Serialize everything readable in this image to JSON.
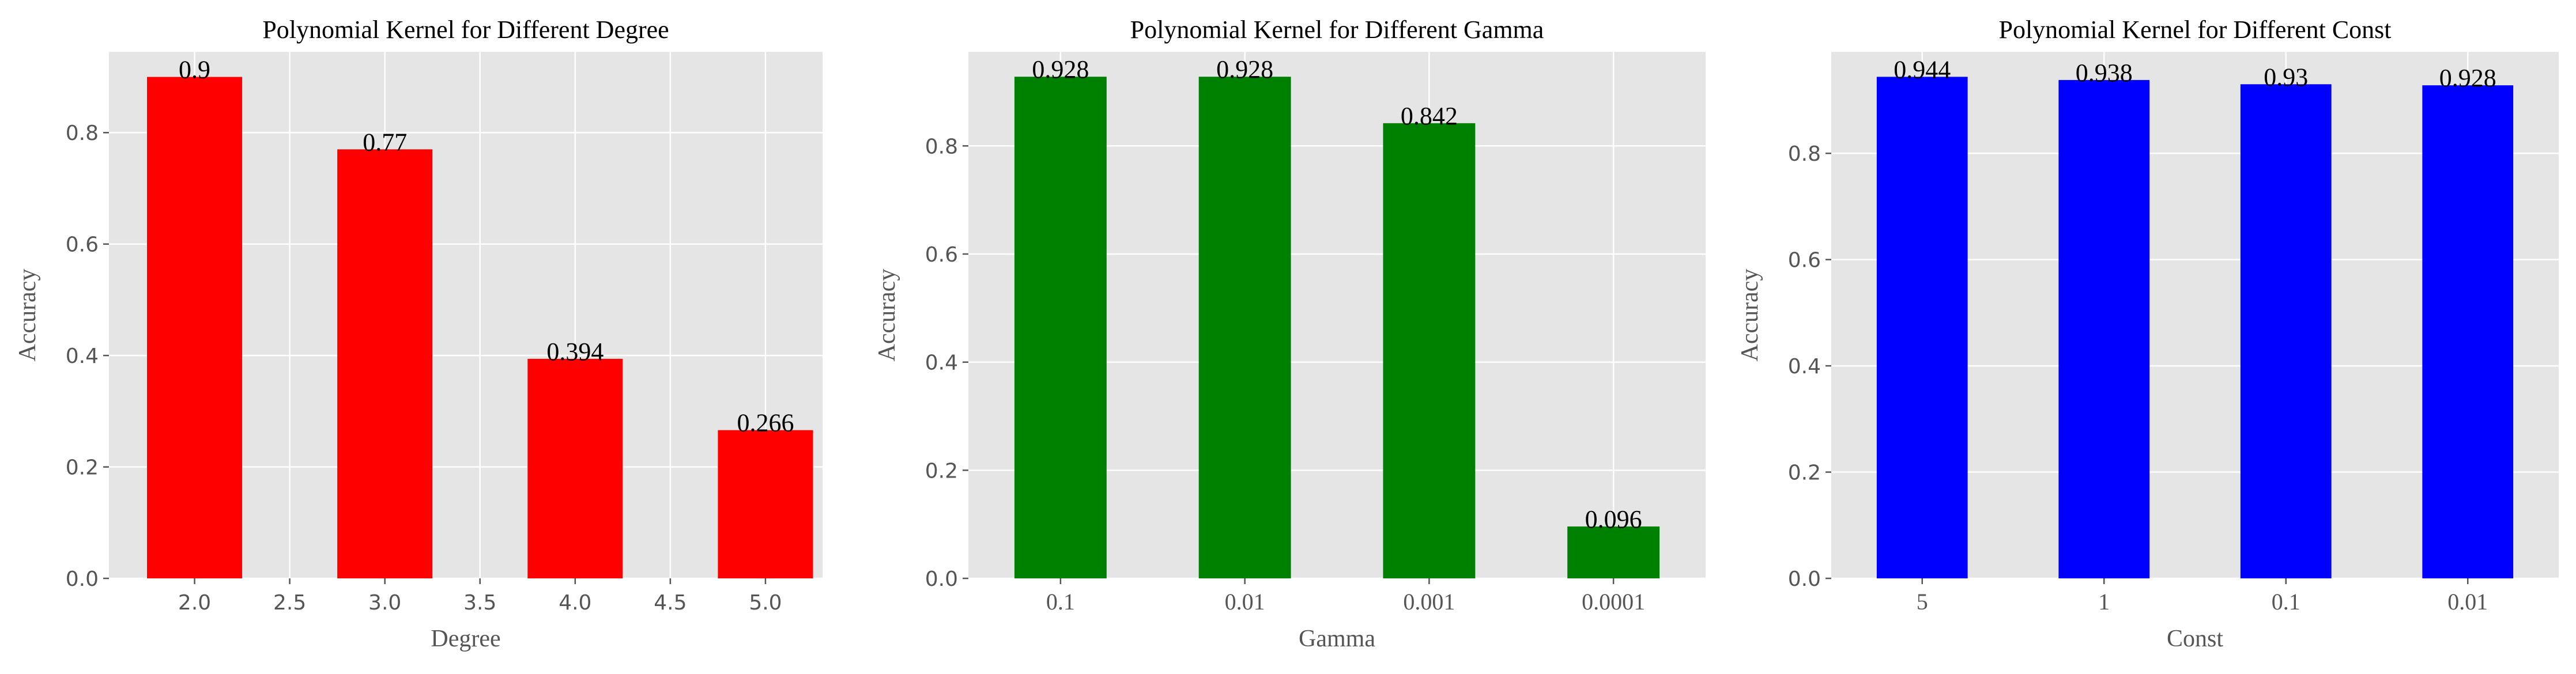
{
  "chart_data": [
    {
      "type": "bar",
      "title": "Polynomial Kernel for Different Degree",
      "xlabel": "Degree",
      "ylabel": "Accuracy",
      "x": [
        2,
        3,
        4,
        5
      ],
      "values": [
        0.9,
        0.77,
        0.394,
        0.266
      ],
      "data_labels": [
        "0.9",
        "0.77",
        "0.394",
        "0.266"
      ],
      "xlim": [
        1.55,
        5.3
      ],
      "ylim": [
        0,
        0.945
      ],
      "xticks": [
        "2.0",
        "2.5",
        "3.0",
        "3.5",
        "4.0",
        "4.5",
        "5.0"
      ],
      "yticks": [
        "0.0",
        "0.2",
        "0.4",
        "0.6",
        "0.8"
      ],
      "bar_color": "#ff0000",
      "grid": true
    },
    {
      "type": "bar",
      "title": "Polynomial Kernel for Different Gamma",
      "xlabel": "Gamma",
      "ylabel": "Accuracy",
      "categories": [
        "0.1",
        "0.01",
        "0.001",
        "0.0001"
      ],
      "values": [
        0.928,
        0.928,
        0.842,
        0.096
      ],
      "data_labels": [
        "0.928",
        "0.928",
        "0.842",
        "0.096"
      ],
      "ylim": [
        0,
        0.974
      ],
      "yticks": [
        "0.0",
        "0.2",
        "0.4",
        "0.6",
        "0.8"
      ],
      "bar_color": "#008000",
      "grid": true
    },
    {
      "type": "bar",
      "title": "Polynomial Kernel for Different Const",
      "xlabel": "Const",
      "ylabel": "Accuracy",
      "categories": [
        "5",
        "1",
        "0.1",
        "0.01"
      ],
      "values": [
        0.944,
        0.938,
        0.93,
        0.928
      ],
      "data_labels": [
        "0.944",
        "0.938",
        "0.93",
        "0.928"
      ],
      "ylim": [
        0,
        0.991
      ],
      "yticks": [
        "0.0",
        "0.2",
        "0.4",
        "0.6",
        "0.8"
      ],
      "bar_color": "#0000ff",
      "grid": true
    }
  ]
}
